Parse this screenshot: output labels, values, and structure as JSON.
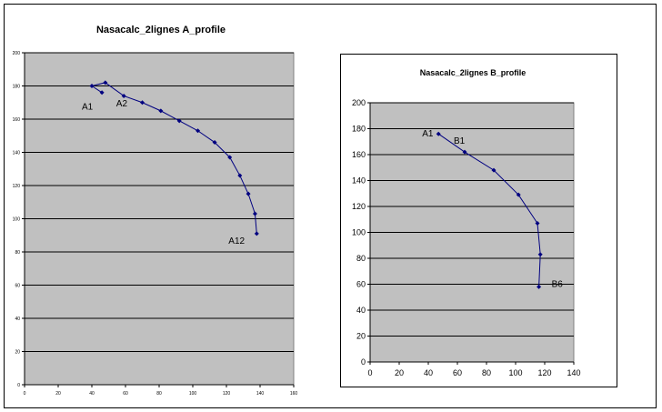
{
  "chart_data": [
    {
      "type": "line",
      "title": "Nasacalc_2lignes A_profile",
      "xlim": [
        0,
        160
      ],
      "ylim": [
        0,
        200
      ],
      "x_ticks": [
        0,
        20,
        40,
        60,
        80,
        100,
        120,
        140,
        160
      ],
      "y_ticks": [
        0,
        20,
        40,
        60,
        80,
        100,
        120,
        140,
        160,
        180,
        200
      ],
      "grid": true,
      "line_color": "#000080",
      "plot_bg": "#c0c0c0",
      "series": [
        {
          "x": [
            46,
            40,
            48,
            59,
            70,
            81,
            92,
            103,
            113,
            122,
            128,
            133,
            137,
            138
          ],
          "y": [
            176,
            180,
            182,
            174,
            170,
            165,
            159,
            153,
            146,
            137,
            126,
            115,
            103,
            91
          ]
        }
      ],
      "annotations": [
        {
          "text": "A1",
          "x": 40,
          "y": 180
        },
        {
          "text": "A2",
          "x": 48,
          "y": 182
        },
        {
          "text": "A12",
          "x": 138,
          "y": 91
        }
      ]
    },
    {
      "type": "line",
      "title": "Nasacalc_2lignes B_profile",
      "xlim": [
        0,
        140
      ],
      "ylim": [
        0,
        200
      ],
      "x_ticks": [
        0,
        20,
        40,
        60,
        80,
        100,
        120,
        140
      ],
      "y_ticks": [
        0,
        20,
        40,
        60,
        80,
        100,
        120,
        140,
        160,
        180,
        200
      ],
      "grid": true,
      "line_color": "#000080",
      "plot_bg": "#c0c0c0",
      "series": [
        {
          "x": [
            47,
            65,
            85,
            102,
            115,
            117,
            116
          ],
          "y": [
            176,
            162,
            148,
            129,
            107,
            83,
            58
          ]
        }
      ],
      "annotations": [
        {
          "text": "A1",
          "x": 47,
          "y": 176
        },
        {
          "text": "B1",
          "x": 65,
          "y": 162
        },
        {
          "text": "B6",
          "x": 116,
          "y": 58
        }
      ]
    }
  ]
}
